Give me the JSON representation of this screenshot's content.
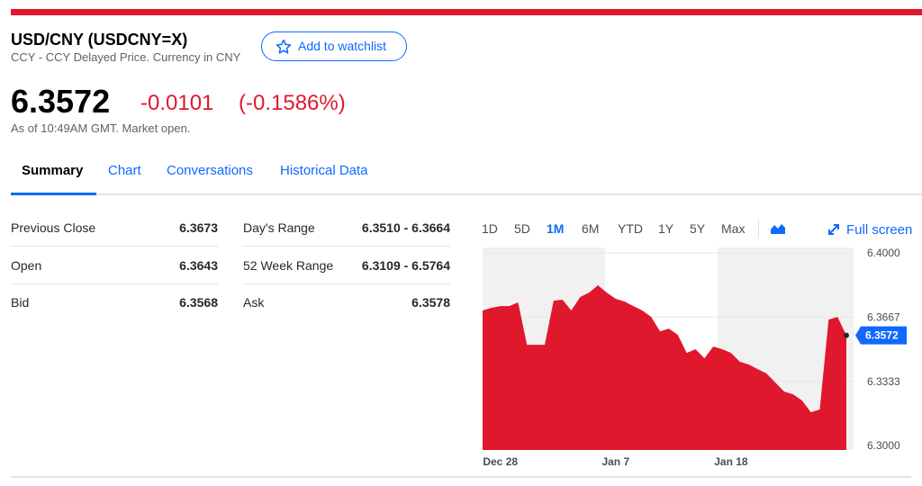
{
  "header": {
    "title": "USD/CNY (USDCNY=X)",
    "subtitle": "CCY - CCY Delayed Price. Currency in CNY",
    "watchlist": "Add to watchlist"
  },
  "quote": {
    "price": "6.3572",
    "change": "-0.0101",
    "change_pct": "(-0.1586%)",
    "as_of": "As of 10:49AM GMT. Market open."
  },
  "tabs": [
    "Summary",
    "Chart",
    "Conversations",
    "Historical Data"
  ],
  "summary": {
    "rows": [
      [
        "Previous Close",
        "6.3673",
        "Day's Range",
        "6.3510 - 6.3664"
      ],
      [
        "Open",
        "6.3643",
        "52 Week Range",
        "6.3109 - 6.5764"
      ],
      [
        "Bid",
        "6.3568",
        "Ask",
        "6.3578"
      ]
    ]
  },
  "chart_data": {
    "type": "area",
    "ranges": [
      "1D",
      "5D",
      "1M",
      "6M",
      "YTD",
      "1Y",
      "5Y",
      "Max"
    ],
    "full_screen": "Full screen",
    "color": "#e0182d",
    "categories": [
      null,
      null,
      "Dec 28",
      null,
      null,
      null,
      null,
      null,
      null,
      null,
      null,
      null,
      null,
      null,
      null,
      "Jan 7",
      null,
      null,
      null,
      null,
      null,
      null,
      null,
      null,
      null,
      null,
      null,
      null,
      "Jan 18",
      null,
      null,
      null,
      null,
      null,
      null,
      null,
      null,
      null,
      null,
      null,
      null,
      null
    ],
    "values": [
      6.3701,
      6.3715,
      6.3724,
      6.3724,
      6.3743,
      6.3523,
      6.3523,
      6.3523,
      6.3752,
      6.3757,
      6.3701,
      6.3771,
      6.3794,
      6.3832,
      6.3794,
      6.3762,
      6.3748,
      6.3724,
      6.3701,
      6.3668,
      6.3593,
      6.3607,
      6.3575,
      6.3481,
      6.35,
      6.3453,
      6.3514,
      6.35,
      6.3481,
      6.3435,
      6.3421,
      6.3397,
      6.3374,
      6.3327,
      6.328,
      6.3266,
      6.3234,
      6.3173,
      6.3187,
      6.3654,
      6.3668,
      6.3572
    ],
    "ylim": [
      6.2977,
      6.4028
    ],
    "yticks": [
      {
        "value": 6.4,
        "label": "6.4000"
      },
      6.3667,
      6.3333,
      {
        "value": 6.3,
        "label": "6.3000"
      }
    ]
  }
}
